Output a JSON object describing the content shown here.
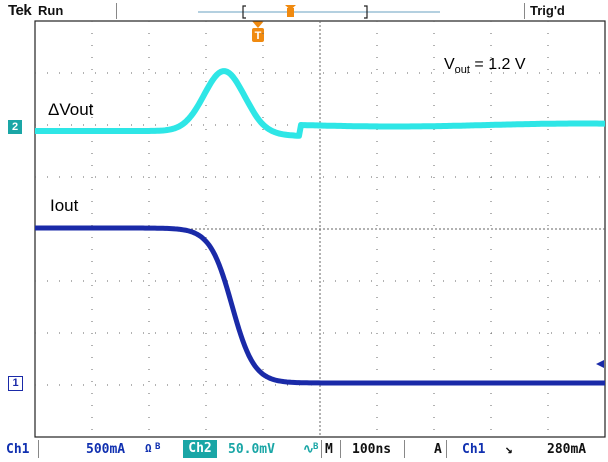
{
  "header": {
    "brand": "Tek",
    "run_state": "Run",
    "trigger_status": "Trig'd"
  },
  "channels": {
    "ch1": {
      "marker": "1",
      "trace_label": "Iout",
      "color": "#1a2aa8"
    },
    "ch2": {
      "marker": "2",
      "trace_label": "ΔVout",
      "color": "#2ee6e6"
    }
  },
  "annotation": {
    "v": "V",
    "sub": "out",
    "rest": " = 1.2 V"
  },
  "status": {
    "ch1": "Ch1",
    "ch1_scale": "500mA",
    "ch1_icons": "Ω",
    "ch1_bw": "B",
    "ch2": "Ch2",
    "ch2_scale": "50.0mV",
    "ch2_icons": "∿",
    "ch2_bw": "B",
    "timebase_label": "M",
    "timebase": "100ns",
    "trigger_mode": "A",
    "trigger_source": "Ch1",
    "trigger_slope": "↘",
    "trigger_level": "280mA"
  },
  "trigger_marker": "T"
}
